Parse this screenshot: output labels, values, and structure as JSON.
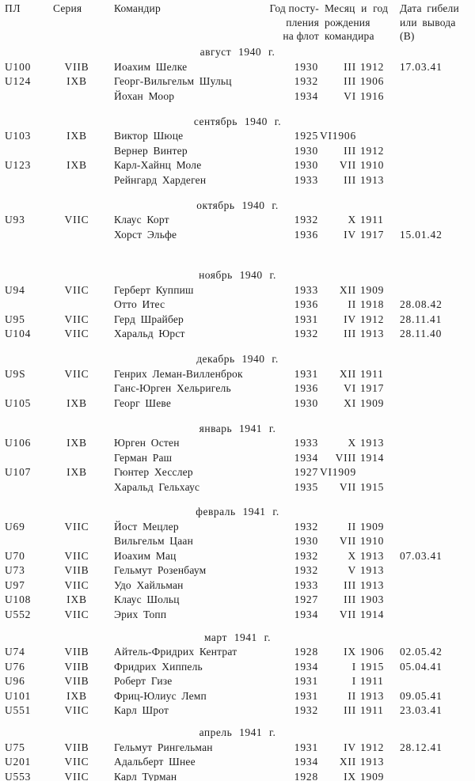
{
  "header": {
    "col_pl": "ПЛ",
    "col_series": "Серия",
    "col_commander": "Командир",
    "col_year_lines": [
      "Год посту-",
      "пления",
      "на флот"
    ],
    "col_birth_lines": [
      "Месяц и год",
      "рождения",
      "командира"
    ],
    "col_fate_lines": [
      "Дата гибели",
      "или вывода",
      "(В)"
    ]
  },
  "sections": [
    {
      "title": "август 1940 г.",
      "rows": [
        {
          "pl": "U100",
          "series": "VIIB",
          "commander": "Иоахим Шелке",
          "year": "1930",
          "birth_month": "III",
          "birth_year": "1912",
          "fate": "17.03.41"
        },
        {
          "pl": "U124",
          "series": "IXB",
          "commander": "Георг-Вильгельм Шульц",
          "year": "1932",
          "birth_month": "III",
          "birth_year": "1906",
          "fate": ""
        },
        {
          "pl": "",
          "series": "",
          "commander": "Йохан Моор",
          "year": "1934",
          "birth_month": "VI",
          "birth_year": "1916",
          "fate": ""
        }
      ]
    },
    {
      "title": "сентябрь 1940 г.",
      "rows": [
        {
          "pl": "U103",
          "series": "IXB",
          "commander": "Виктор Шюце",
          "year": "1925",
          "birth_month": "VI1906",
          "birth_year": "",
          "fate": ""
        },
        {
          "pl": "",
          "series": "",
          "commander": "Вернер Винтер",
          "year": "1930",
          "birth_month": "III",
          "birth_year": "1912",
          "fate": ""
        },
        {
          "pl": "U123",
          "series": "IXB",
          "commander": "Карл-Хайнц Моле",
          "year": "1930",
          "birth_month": "VII",
          "birth_year": "1910",
          "fate": ""
        },
        {
          "pl": "",
          "series": "",
          "commander": "Рейнгард Хардеген",
          "year": "1933",
          "birth_month": "III",
          "birth_year": "1913",
          "fate": ""
        }
      ]
    },
    {
      "title": "октябрь 1940 г.",
      "rows": [
        {
          "pl": "U93",
          "series": "VIIC",
          "commander": "Клаус Корт",
          "year": "1932",
          "birth_month": "X",
          "birth_year": "1911",
          "fate": ""
        },
        {
          "pl": "",
          "series": "",
          "commander": "Хорст Эльфе",
          "year": "1936",
          "birth_month": "IV",
          "birth_year": "1917",
          "fate": "15.01.42"
        }
      ]
    },
    {
      "title": "ноябрь 1940 г.",
      "rows": [
        {
          "pl": "U94",
          "series": "VIIC",
          "commander": "Герберт Куппиш",
          "year": "1933",
          "birth_month": "XII",
          "birth_year": "1909",
          "fate": ""
        },
        {
          "pl": "",
          "series": "",
          "commander": "Отто Итес",
          "year": "1936",
          "birth_month": "II",
          "birth_year": "1918",
          "fate": "28.08.42"
        },
        {
          "pl": "U95",
          "series": "VIIC",
          "commander": "Герд Шрайбер",
          "year": "1931",
          "birth_month": "IV",
          "birth_year": "1912",
          "fate": "28.11.41"
        },
        {
          "pl": "U104",
          "series": "VIIC",
          "commander": "Харальд Юрст",
          "year": "1932",
          "birth_month": "III",
          "birth_year": "1913",
          "fate": "28.11.40"
        }
      ]
    },
    {
      "title": "декабрь 1940 г.",
      "rows": [
        {
          "pl": "U9S",
          "series": "VIIC",
          "commander": "Генрих Леман-Вилленброк",
          "year": "1931",
          "birth_month": "XII",
          "birth_year": "1911",
          "fate": ""
        },
        {
          "pl": "",
          "series": "",
          "commander": "Ганс-Юрген Хельригель",
          "year": "1936",
          "birth_month": "VI",
          "birth_year": "1917",
          "fate": ""
        },
        {
          "pl": "U105",
          "series": "IXB",
          "commander": "Георг Шеве",
          "year": "1930",
          "birth_month": "XI",
          "birth_year": "1909",
          "fate": ""
        }
      ]
    },
    {
      "title": "январь 1941 г.",
      "rows": [
        {
          "pl": "U106",
          "series": "IXB",
          "commander": "Юрген Остен",
          "year": "1933",
          "birth_month": "X",
          "birth_year": "1913",
          "fate": ""
        },
        {
          "pl": "",
          "series": "",
          "commander": "Герман Раш",
          "year": "1934",
          "birth_month": "VIII",
          "birth_year": "1914",
          "fate": ""
        },
        {
          "pl": "U107",
          "series": "IXB",
          "commander": "Гюнтер Хесслер",
          "year": "1927",
          "birth_month": "VI1909",
          "birth_year": "",
          "fate": ""
        },
        {
          "pl": "",
          "series": "",
          "commander": "Харальд Гельхаус",
          "year": "1935",
          "birth_month": "VII",
          "birth_year": "1915",
          "fate": ""
        }
      ]
    },
    {
      "title": "февраль 1941 г.",
      "rows": [
        {
          "pl": "U69",
          "series": "VIIC",
          "commander": "Йост Мецлер",
          "year": "1932",
          "birth_month": "II",
          "birth_year": "1909",
          "fate": ""
        },
        {
          "pl": "",
          "series": "",
          "commander": "Вильгельм Цаан",
          "year": "1930",
          "birth_month": "VII",
          "birth_year": "1910",
          "fate": ""
        },
        {
          "pl": "U70",
          "series": "VIIC",
          "commander": "Иоахим Мац",
          "year": "1932",
          "birth_month": "X",
          "birth_year": "1913",
          "fate": "07.03.41"
        },
        {
          "pl": "U73",
          "series": "VIIB",
          "commander": "Гельмут Розенбаум",
          "year": "1932",
          "birth_month": "V",
          "birth_year": "1913",
          "fate": ""
        },
        {
          "pl": "U97",
          "series": "VIIC",
          "commander": "Удо Хайльман",
          "year": "1933",
          "birth_month": "III",
          "birth_year": "1913",
          "fate": ""
        },
        {
          "pl": "U108",
          "series": "IXB",
          "commander": "Клаус Шольц",
          "year": "1927",
          "birth_month": "III",
          "birth_year": "1903",
          "fate": ""
        },
        {
          "pl": "U552",
          "series": "VIIC",
          "commander": "Эрих Топп",
          "year": "1934",
          "birth_month": "VII",
          "birth_year": "1914",
          "fate": ""
        }
      ]
    },
    {
      "title": "март 1941 г.",
      "rows": [
        {
          "pl": "U74",
          "series": "VIIB",
          "commander": "Айтель-Фридрих Кентрат",
          "year": "1928",
          "birth_month": "IX",
          "birth_year": "1906",
          "fate": "02.05.42"
        },
        {
          "pl": "U76",
          "series": "VIIB",
          "commander": "Фридрих Хиппель",
          "year": "1934",
          "birth_month": "I",
          "birth_year": "1915",
          "fate": "05.04.41"
        },
        {
          "pl": "U96",
          "series": "VIIB",
          "commander": "Роберт Гизе",
          "year": "1931",
          "birth_month": "I",
          "birth_year": "1911",
          "fate": ""
        },
        {
          "pl": "U101",
          "series": "IXB",
          "commander": "Фриц-Юлиус Лемп",
          "year": "1931",
          "birth_month": "II",
          "birth_year": "1913",
          "fate": "09.05.41"
        },
        {
          "pl": "U551",
          "series": "VIIC",
          "commander": "Карл Шрот",
          "year": "1932",
          "birth_month": "III",
          "birth_year": "1911",
          "fate": "23.03.41"
        }
      ]
    },
    {
      "title": "апрель 1941 г.",
      "rows": [
        {
          "pl": "U75",
          "series": "VIIB",
          "commander": "Гельмут Рингельман",
          "year": "1931",
          "birth_month": "IV",
          "birth_year": "1912",
          "fate": "28.12.41"
        },
        {
          "pl": "U201",
          "series": "VIIC",
          "commander": "Адальберт Шнее",
          "year": "1934",
          "birth_month": "XII",
          "birth_year": "1913",
          "fate": ""
        },
        {
          "pl": "U553",
          "series": "VIIC",
          "commander": "Карл Турман",
          "year": "1928",
          "birth_month": "IX",
          "birth_year": "1909",
          "fate": ""
        }
      ]
    }
  ]
}
